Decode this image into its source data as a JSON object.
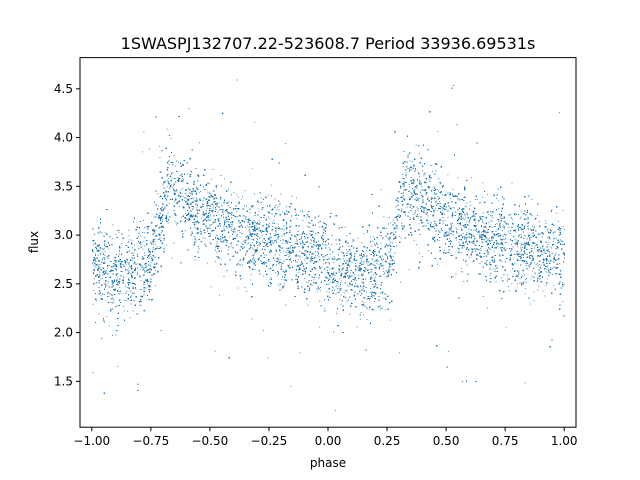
{
  "chart_data": {
    "type": "scatter",
    "title": "1SWASPJ132707.22-523608.7 Period 33936.69531s",
    "xlabel": "phase",
    "ylabel": "flux",
    "xlim": [
      -1.05,
      1.05
    ],
    "ylim": [
      1.03,
      4.82
    ],
    "x_ticks": [
      -1.0,
      -0.75,
      -0.5,
      -0.25,
      0.0,
      0.25,
      0.5,
      0.75,
      1.0
    ],
    "x_tick_labels": [
      "−1.00",
      "−0.75",
      "−0.50",
      "−0.25",
      "0.00",
      "0.25",
      "0.50",
      "0.75",
      "1.00"
    ],
    "y_ticks": [
      1.5,
      2.0,
      2.5,
      3.0,
      3.5,
      4.0,
      4.5
    ],
    "y_tick_labels": [
      "1.5",
      "2.0",
      "2.5",
      "3.0",
      "3.5",
      "4.0",
      "4.5"
    ],
    "grid": false,
    "point_color": "#1f77b4",
    "curve": {
      "description_points_phase": [
        0.0,
        0.05,
        0.12,
        0.2,
        0.25,
        0.3,
        0.33,
        0.36,
        0.45,
        0.55,
        0.7,
        0.85,
        1.0
      ],
      "mean_flux": [
        2.7,
        2.62,
        2.58,
        2.65,
        2.75,
        3.25,
        3.55,
        3.45,
        3.25,
        3.08,
        2.95,
        2.85,
        2.78
      ]
    },
    "scatter_sigma": 0.22,
    "n_points": 40000
  }
}
